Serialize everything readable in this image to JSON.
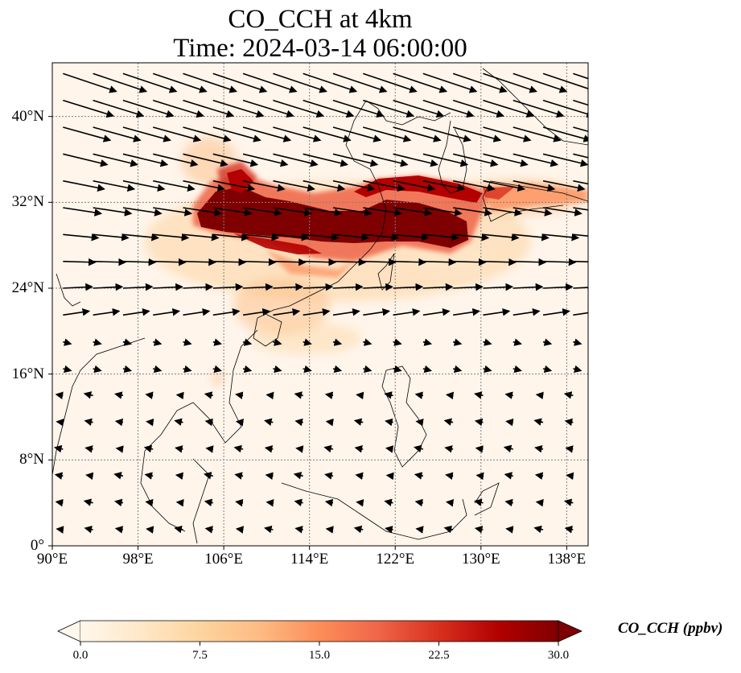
{
  "title": {
    "line1": "CO_CCH at 4km",
    "line2": "Time: 2024-03-14 06:00:00"
  },
  "map": {
    "projection": "PlateCarree",
    "lon_range": [
      90,
      140
    ],
    "lat_range": [
      0,
      45
    ],
    "gridlines": "dotted",
    "lon_ticks": [
      {
        "lon": 90,
        "label": "90°E"
      },
      {
        "lon": 98,
        "label": "98°E"
      },
      {
        "lon": 106,
        "label": "106°E"
      },
      {
        "lon": 114,
        "label": "114°E"
      },
      {
        "lon": 122,
        "label": "122°E"
      },
      {
        "lon": 130,
        "label": "130°E"
      },
      {
        "lon": 138,
        "label": "138°E"
      }
    ],
    "lat_ticks": [
      {
        "lat": 0,
        "label": "0°"
      },
      {
        "lat": 8,
        "label": "8°N"
      },
      {
        "lat": 16,
        "label": "16°N"
      },
      {
        "lat": 24,
        "label": "24°N"
      },
      {
        "lat": 32,
        "label": "32°N"
      },
      {
        "lat": 40,
        "label": "40°N"
      }
    ],
    "plume_color": "#7f0000",
    "background_color": "#fff5eb",
    "plume_band": {
      "lon_from": 103,
      "lon_to": 137,
      "lat_center": 29.5
    }
  },
  "colorbar": {
    "label": "CO_CCH (ppbv)",
    "min": 0.0,
    "max": 30.0,
    "extend": "both",
    "colormap": "OrRd",
    "colors": [
      "#fff7ec",
      "#fee8c8",
      "#fdd49e",
      "#fdbb84",
      "#fc8d59",
      "#ef6548",
      "#d7301f",
      "#b30000",
      "#7f0000"
    ],
    "ticks": [
      "0.0",
      "7.5",
      "15.0",
      "22.5",
      "30.0"
    ]
  }
}
